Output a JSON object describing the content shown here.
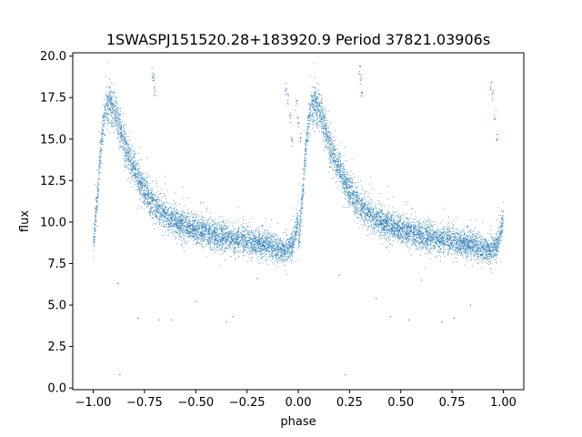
{
  "chart_data": {
    "type": "scatter",
    "title": "1SWASPJ151520.28+183920.9 Period 37821.03906s",
    "xlabel": "phase",
    "ylabel": "flux",
    "xlim": [
      -1.1,
      1.1
    ],
    "ylim": [
      -0.1,
      20.2
    ],
    "xticks": [
      -1.0,
      -0.75,
      -0.5,
      -0.25,
      0.0,
      0.25,
      0.5,
      0.75,
      1.0
    ],
    "xtick_labels": [
      "−1.00",
      "−0.75",
      "−0.50",
      "−0.25",
      "0.00",
      "0.25",
      "0.50",
      "0.75",
      "1.00"
    ],
    "yticks": [
      0.0,
      2.5,
      5.0,
      7.5,
      10.0,
      12.5,
      15.0,
      17.5,
      20.0
    ],
    "ytick_labels": [
      "0.0",
      "2.5",
      "5.0",
      "7.5",
      "10.0",
      "12.5",
      "15.0",
      "17.5",
      "20.0"
    ],
    "grid": false,
    "legend": "none",
    "series_color": "#1f77b4",
    "light_curve_profile": {
      "phase": [
        0.0,
        0.02,
        0.04,
        0.06,
        0.08,
        0.1,
        0.13,
        0.16,
        0.2,
        0.25,
        0.3,
        0.35,
        0.4,
        0.45,
        0.5,
        0.55,
        0.6,
        0.65,
        0.7,
        0.75,
        0.8,
        0.85,
        0.9,
        0.93,
        0.96,
        0.98,
        1.0
      ],
      "flux": [
        8.6,
        11.5,
        15.0,
        17.0,
        17.2,
        16.8,
        15.6,
        14.4,
        13.2,
        11.9,
        11.0,
        10.4,
        10.0,
        9.75,
        9.55,
        9.35,
        9.2,
        9.05,
        8.95,
        8.85,
        8.75,
        8.6,
        8.35,
        8.3,
        8.4,
        9.0,
        10.2
      ]
    },
    "flare_segments": [
      {
        "x": [
          -0.71,
          -0.705,
          -0.7
        ],
        "y": [
          19.0,
          18.5,
          17.8
        ]
      },
      {
        "x": [
          0.3,
          0.305,
          0.31
        ],
        "y": [
          19.2,
          18.6,
          17.9
        ]
      },
      {
        "x": [
          0.94,
          0.95,
          0.96,
          0.97
        ],
        "y": [
          18.2,
          17.6,
          16.5,
          15.0
        ]
      },
      {
        "x": [
          -0.06,
          -0.05,
          -0.04,
          -0.03
        ],
        "y": [
          18.0,
          17.4,
          16.3,
          14.8
        ]
      },
      {
        "x": [
          -0.01,
          0.0,
          0.01
        ],
        "y": [
          17.0,
          16.0,
          15.0
        ]
      }
    ],
    "outliers": [
      {
        "x": -0.87,
        "y": 0.8
      },
      {
        "x": 0.23,
        "y": 0.8
      },
      {
        "x": -0.78,
        "y": 4.2
      },
      {
        "x": -0.68,
        "y": 4.1
      },
      {
        "x": -0.62,
        "y": 4.1
      },
      {
        "x": -0.35,
        "y": 4.0
      },
      {
        "x": -0.32,
        "y": 4.3
      },
      {
        "x": 0.45,
        "y": 4.3
      },
      {
        "x": 0.54,
        "y": 4.1
      },
      {
        "x": 0.7,
        "y": 4.0
      },
      {
        "x": 0.76,
        "y": 4.2
      },
      {
        "x": -0.5,
        "y": 5.2
      },
      {
        "x": 0.38,
        "y": 5.4
      },
      {
        "x": 0.84,
        "y": 5.0
      },
      {
        "x": -0.88,
        "y": 6.3
      },
      {
        "x": -0.2,
        "y": 6.6
      },
      {
        "x": 0.2,
        "y": 6.8
      },
      {
        "x": 0.6,
        "y": 6.5
      }
    ]
  }
}
